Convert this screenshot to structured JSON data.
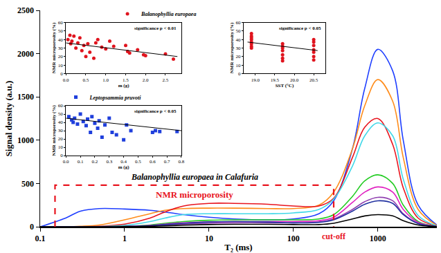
{
  "chart_data": [
    {
      "type": "line",
      "title": "Balanophyllia europaea in Calafuria",
      "x_label": "T₂ (ms)",
      "y_label": "Signal density (a.u.)",
      "log": "x",
      "grid": false,
      "x": [
        0.1,
        0.2,
        0.3,
        0.5,
        1,
        2,
        3,
        5,
        10,
        20,
        50,
        100,
        200,
        300,
        500,
        700,
        1000,
        1500,
        2000,
        3000,
        5000
      ],
      "series": [
        {
          "color": "#1f3fff",
          "values": [
            0,
            100,
            180,
            210,
            205,
            190,
            170,
            140,
            110,
            90,
            80,
            90,
            150,
            300,
            900,
            1600,
            2050,
            1800,
            1000,
            250,
            20
          ]
        },
        {
          "color": "#ff8c1a",
          "values": [
            0,
            0,
            5,
            20,
            80,
            150,
            190,
            210,
            215,
            215,
            210,
            210,
            250,
            400,
            900,
            1400,
            1700,
            1450,
            800,
            200,
            15
          ]
        },
        {
          "color": "#e8141e",
          "values": [
            0,
            0,
            0,
            5,
            30,
            100,
            170,
            240,
            270,
            270,
            260,
            240,
            240,
            330,
            800,
            1150,
            1250,
            950,
            450,
            100,
            10
          ]
        },
        {
          "color": "#40d8e8",
          "values": [
            0,
            0,
            0,
            2,
            15,
            60,
            100,
            140,
            150,
            150,
            150,
            160,
            200,
            320,
            700,
            1050,
            1200,
            1050,
            550,
            130,
            10
          ]
        },
        {
          "color": "#22cc22",
          "values": [
            0,
            0,
            0,
            0,
            5,
            20,
            40,
            60,
            75,
            80,
            80,
            80,
            90,
            140,
            350,
            530,
            600,
            500,
            250,
            60,
            5
          ]
        },
        {
          "color": "#e020c0",
          "values": [
            0,
            0,
            0,
            0,
            3,
            15,
            30,
            45,
            55,
            60,
            60,
            60,
            70,
            110,
            280,
            400,
            460,
            400,
            200,
            50,
            5
          ]
        },
        {
          "color": "#9040b0",
          "values": [
            0,
            0,
            0,
            0,
            2,
            10,
            20,
            30,
            40,
            45,
            45,
            45,
            55,
            90,
            200,
            290,
            340,
            300,
            150,
            40,
            3
          ]
        },
        {
          "color": "#2030a0",
          "values": [
            0,
            0,
            0,
            0,
            3,
            12,
            25,
            40,
            55,
            60,
            55,
            45,
            50,
            80,
            180,
            260,
            300,
            270,
            140,
            35,
            3
          ]
        },
        {
          "color": "#000000",
          "values": [
            0,
            0,
            0,
            0,
            1,
            5,
            10,
            18,
            25,
            28,
            28,
            25,
            25,
            40,
            90,
            125,
            140,
            125,
            70,
            20,
            2
          ]
        }
      ],
      "region": {
        "label": "NMR microporosity",
        "x": [
          0.15,
          300
        ],
        "y": 480,
        "color": "#e8141e",
        "line_style": "dashed"
      },
      "cutoff": {
        "label": "cut-off",
        "x": 300,
        "color": "#e8141e"
      },
      "xlim": [
        0.1,
        5000
      ],
      "ylim": [
        0,
        2500
      ],
      "xticks": [
        0.1,
        1,
        10,
        100,
        1000
      ],
      "yticks": [
        0,
        500,
        1000,
        1500,
        2000,
        2500
      ]
    },
    {
      "type": "scatter",
      "annotation": "significance p < 0.01",
      "x_label": "m (g)",
      "y_label": "NMR microporosity (%)",
      "grid": false,
      "legend": "top right",
      "series": [
        {
          "name": "Balanophyllia europaea",
          "color": "#e0141e",
          "marker": "circle",
          "x": [
            0.05,
            0.1,
            0.12,
            0.15,
            0.2,
            0.25,
            0.3,
            0.35,
            0.4,
            0.45,
            0.5,
            0.55,
            0.6,
            0.7,
            0.75,
            0.8,
            0.9,
            1.0,
            1.1,
            1.2,
            1.5,
            1.55,
            1.6,
            1.8,
            1.95,
            2.0,
            2.5,
            2.7
          ],
          "values": [
            40,
            45,
            35,
            38,
            44,
            30,
            36,
            42,
            27,
            33,
            20,
            35,
            25,
            18,
            36,
            40,
            31,
            29,
            38,
            32,
            33,
            26,
            24,
            28,
            22,
            21,
            23,
            17
          ]
        }
      ],
      "trend": {
        "x": [
          0,
          2.8
        ],
        "y": [
          36,
          20
        ]
      },
      "xlim": [
        0,
        2.9
      ],
      "ylim": [
        0,
        60
      ],
      "xticks": [
        {
          "value": 0,
          "label": "0.0"
        },
        {
          "value": 0.5,
          "label": "0.5"
        },
        {
          "value": 1,
          "label": "1.0"
        },
        {
          "value": 1.5,
          "label": "1.5"
        },
        {
          "value": 2,
          "label": "2.0"
        },
        {
          "value": 2.5,
          "label": "2.5"
        }
      ],
      "yticks": [
        0,
        10,
        20,
        30,
        40,
        50,
        60
      ]
    },
    {
      "type": "scatter",
      "annotation": "significance p < 0.05",
      "x_label": "SST (°C)",
      "y_label": "NMR microporosity (%)",
      "grid": false,
      "series": [
        {
          "color": "#e0141e",
          "marker": "circle",
          "x": [
            18.9,
            18.9,
            18.9,
            18.9,
            18.9,
            18.9,
            18.9,
            18.9,
            19.7,
            19.7,
            19.7,
            19.7,
            19.7,
            19.7,
            19.7,
            20.5,
            20.5,
            20.5,
            20.5,
            20.5,
            20.5,
            20.5
          ],
          "values": [
            47,
            44,
            42,
            40,
            37,
            35,
            32,
            30,
            35,
            32,
            30,
            27,
            22,
            18,
            15,
            40,
            37,
            33,
            28,
            25,
            20,
            16
          ]
        }
      ],
      "trend": {
        "x": [
          18.8,
          20.6
        ],
        "y": [
          37,
          27
        ]
      },
      "xlim": [
        18.7,
        20.8
      ],
      "ylim": [
        0,
        60
      ],
      "xticks": [
        {
          "value": 19,
          "label": "19.0"
        },
        19.5,
        {
          "value": 20,
          "label": "20.0"
        },
        20.5
      ],
      "yticks": [
        0,
        10,
        20,
        30,
        40,
        50,
        60
      ]
    },
    {
      "type": "scatter",
      "annotation": "significance p < 0.05",
      "x_label": "m (g)",
      "y_label": "NMR microporosity (%)",
      "grid": false,
      "legend": "top left",
      "series": [
        {
          "name": "Leptopsammia pruvoti",
          "color": "#1f3fdc",
          "marker": "square",
          "x": [
            0.02,
            0.04,
            0.05,
            0.06,
            0.08,
            0.1,
            0.12,
            0.14,
            0.15,
            0.17,
            0.18,
            0.2,
            0.22,
            0.23,
            0.25,
            0.27,
            0.3,
            0.32,
            0.35,
            0.4,
            0.42,
            0.45,
            0.6,
            0.62,
            0.65,
            0.77
          ],
          "values": [
            47,
            43,
            40,
            45,
            38,
            50,
            41,
            36,
            44,
            28,
            47,
            39,
            33,
            42,
            22,
            37,
            45,
            28,
            25,
            19,
            37,
            30,
            28,
            30,
            29,
            29
          ]
        }
      ],
      "trend": {
        "x": [
          0,
          0.8
        ],
        "y": [
          45,
          30
        ]
      },
      "xlim": [
        0,
        0.8
      ],
      "ylim": [
        0,
        60
      ],
      "xticks": [
        {
          "value": 0,
          "label": "0.0"
        },
        0.1,
        0.2,
        0.3,
        0.4,
        0.5,
        0.6,
        0.7,
        0.8
      ],
      "yticks": [
        0,
        10,
        20,
        30,
        40,
        50,
        60
      ]
    }
  ]
}
